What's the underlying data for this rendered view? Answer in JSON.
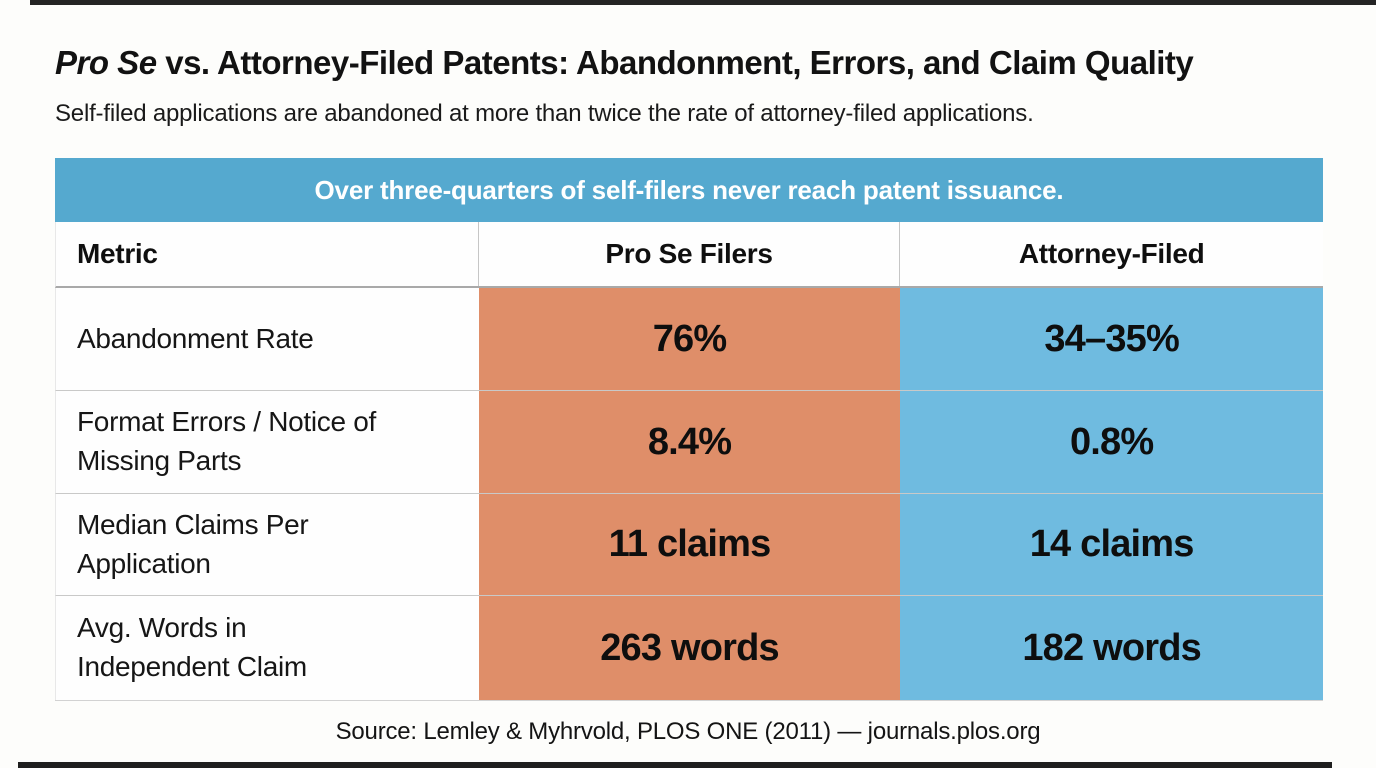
{
  "page": {
    "title_italic": "Pro Se",
    "title_rest": " vs. Attorney-Filed Patents: Abandonment, Errors, and Claim Quality",
    "subtitle": "Self-filed applications are abandoned at more than twice the rate of attorney-filed applications.",
    "source": "Source: Lemley & Myhrvold, PLOS ONE (2011) — journals.plos.org"
  },
  "table": {
    "banner": "Over three-quarters of self-filers never reach patent issuance.",
    "columns": [
      "Metric",
      "Pro Se Filers",
      "Attorney-Filed"
    ],
    "rows": [
      {
        "metric": "Abandonment Rate",
        "pro_se": "76%",
        "attorney": "34–35%"
      },
      {
        "metric": "Format Errors / Notice of Missing Parts",
        "pro_se": "8.4%",
        "attorney": "0.8%"
      },
      {
        "metric": "Median Claims Per Application",
        "pro_se": "11 claims",
        "attorney": "14 claims"
      },
      {
        "metric": "Avg. Words in Independent Claim",
        "pro_se": "263 words",
        "attorney": "182 words"
      }
    ]
  },
  "colors": {
    "banner_blue": "#55a9cf",
    "cell_blue": "#6fbbe0",
    "cell_orange": "#df8e69",
    "text": "#141414"
  },
  "chart_data": {
    "type": "table",
    "title": "Pro Se vs. Attorney-Filed Patents: Abandonment, Errors, and Claim Quality",
    "subtitle": "Self-filed applications are abandoned at more than twice the rate of attorney-filed applications.",
    "banner_note": "Over three-quarters of self-filers never reach patent issuance.",
    "columns": [
      "Metric",
      "Pro Se Filers",
      "Attorney-Filed"
    ],
    "rows": [
      [
        "Abandonment Rate",
        "76%",
        "34–35%"
      ],
      [
        "Format Errors / Notice of Missing Parts",
        "8.4%",
        "0.8%"
      ],
      [
        "Median Claims Per Application",
        "11 claims",
        "14 claims"
      ],
      [
        "Avg. Words in Independent Claim",
        "263 words",
        "182 words"
      ]
    ],
    "source": "Source: Lemley & Myhrvold, PLOS ONE (2011) — journals.plos.org",
    "layout_hints": {
      "pro_se_column_color": "#df8e69",
      "attorney_column_color": "#6fbbe0",
      "banner_color": "#55a9cf",
      "columns_equal_width": true
    }
  }
}
